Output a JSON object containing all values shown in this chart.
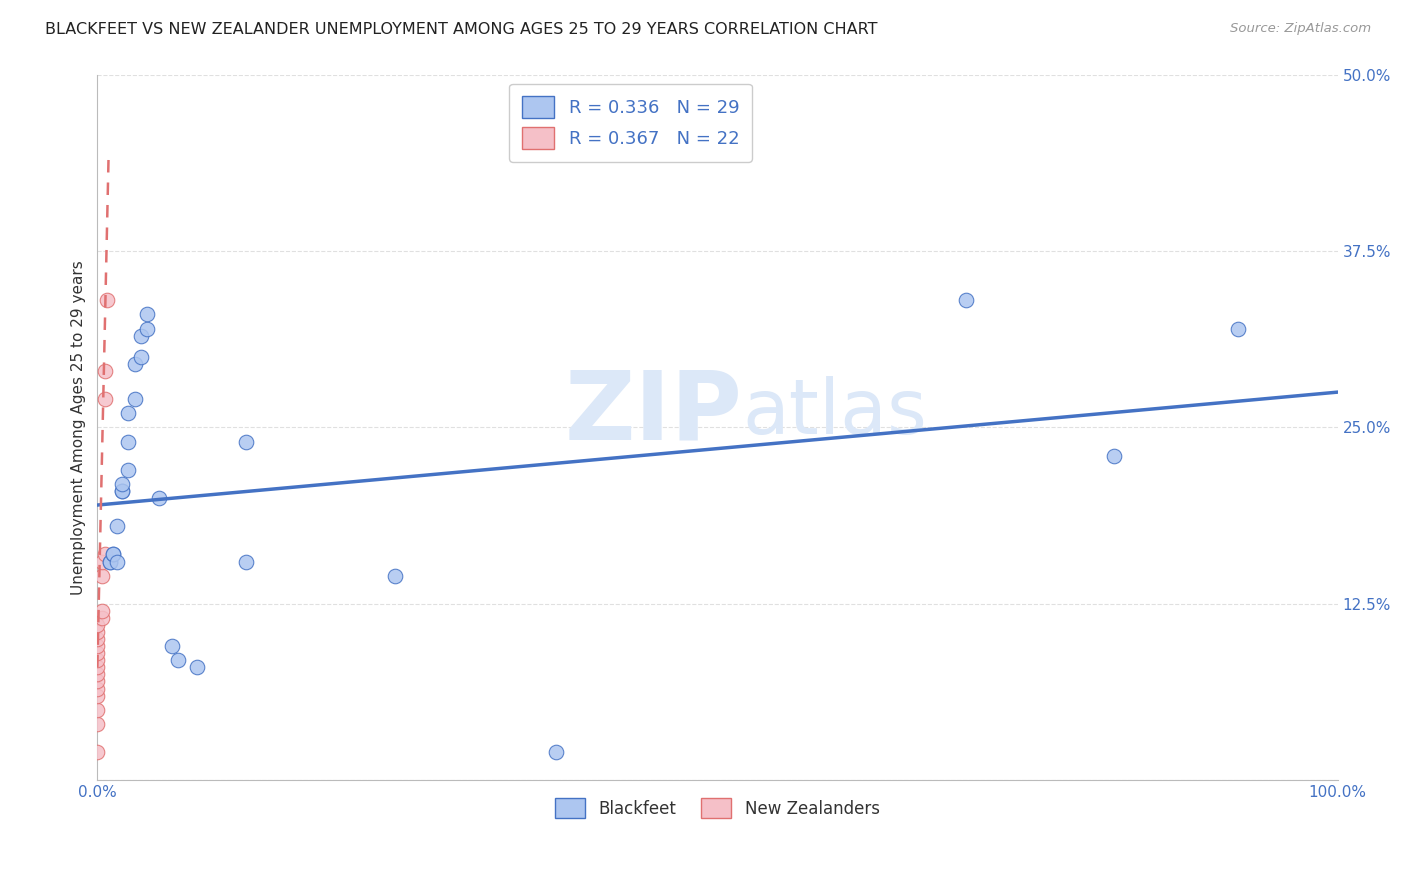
{
  "title": "BLACKFEET VS NEW ZEALANDER UNEMPLOYMENT AMONG AGES 25 TO 29 YEARS CORRELATION CHART",
  "source": "Source: ZipAtlas.com",
  "ylabel": "Unemployment Among Ages 25 to 29 years",
  "xlabel": "",
  "xlim": [
    0,
    1.0
  ],
  "ylim": [
    0,
    0.5
  ],
  "blue_R": 0.336,
  "blue_N": 29,
  "pink_R": 0.367,
  "pink_N": 22,
  "blackfeet_x": [
    0.01,
    0.01,
    0.013,
    0.013,
    0.016,
    0.016,
    0.02,
    0.02,
    0.02,
    0.025,
    0.025,
    0.025,
    0.03,
    0.03,
    0.035,
    0.035,
    0.04,
    0.04,
    0.05,
    0.06,
    0.065,
    0.08,
    0.12,
    0.12,
    0.24,
    0.37,
    0.7,
    0.82,
    0.92
  ],
  "blackfeet_y": [
    0.155,
    0.155,
    0.16,
    0.16,
    0.155,
    0.18,
    0.205,
    0.205,
    0.21,
    0.22,
    0.24,
    0.26,
    0.27,
    0.295,
    0.3,
    0.315,
    0.32,
    0.33,
    0.2,
    0.095,
    0.085,
    0.08,
    0.155,
    0.24,
    0.145,
    0.02,
    0.34,
    0.23,
    0.32
  ],
  "nz_x": [
    0.0,
    0.0,
    0.0,
    0.0,
    0.0,
    0.0,
    0.0,
    0.0,
    0.0,
    0.0,
    0.0,
    0.0,
    0.0,
    0.0,
    0.004,
    0.004,
    0.004,
    0.004,
    0.006,
    0.006,
    0.006,
    0.008
  ],
  "nz_y": [
    0.02,
    0.04,
    0.05,
    0.06,
    0.065,
    0.07,
    0.075,
    0.08,
    0.085,
    0.09,
    0.095,
    0.1,
    0.105,
    0.11,
    0.115,
    0.12,
    0.145,
    0.155,
    0.16,
    0.27,
    0.29,
    0.34
  ],
  "blue_line_x": [
    0.0,
    1.0
  ],
  "blue_line_y": [
    0.195,
    0.275
  ],
  "pink_line_x": [
    0.0,
    0.009
  ],
  "pink_line_y": [
    0.08,
    0.44
  ],
  "blue_line_color": "#4472c4",
  "pink_line_color": "#e07070",
  "blue_dot_color": "#adc6f0",
  "pink_dot_color": "#f5c0c8",
  "dot_size": 110,
  "watermark_line1": "ZIP",
  "watermark_line2": "atlas",
  "background_color": "#ffffff",
  "grid_color": "#e0e0e0"
}
